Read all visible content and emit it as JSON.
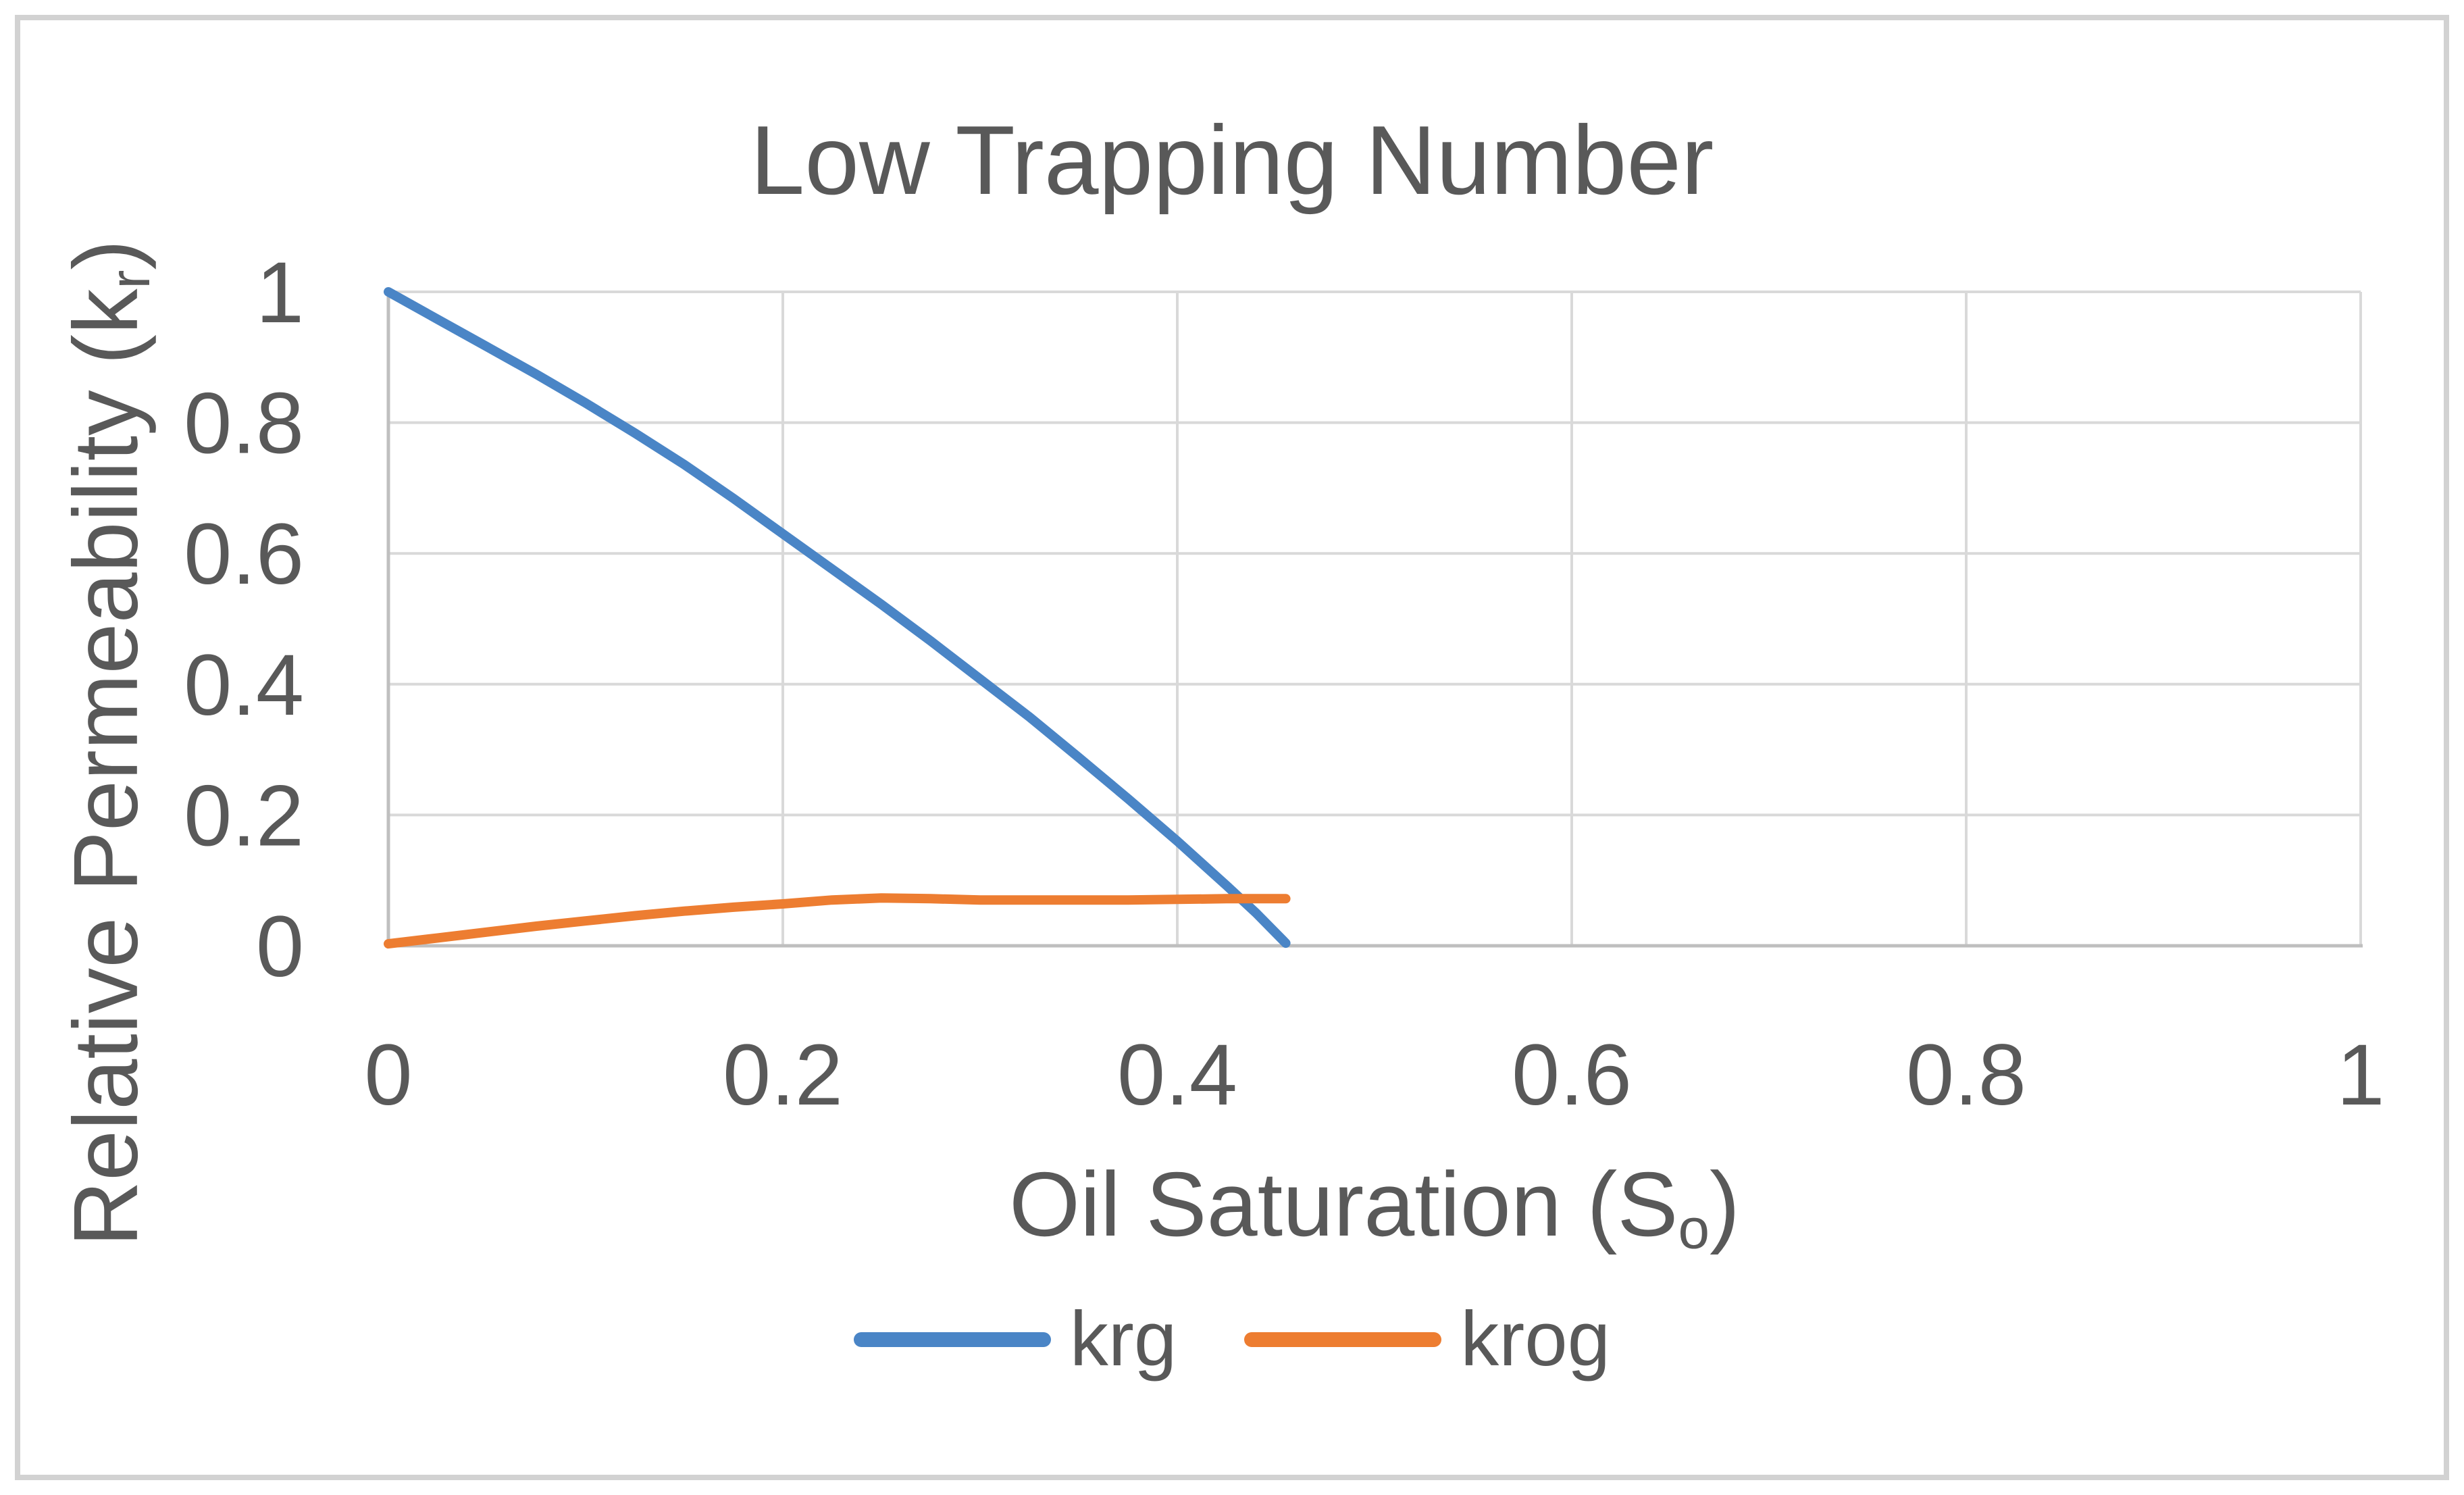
{
  "chart": {
    "title": "Low Trapping Number",
    "ylabel_pre": "Relative Permeability (k",
    "ylabel_sub": "r",
    "ylabel_post": ")",
    "xlabel_pre": "Oil Saturation (S",
    "xlabel_sub": "o",
    "xlabel_post": ")"
  },
  "chart_data": {
    "type": "line",
    "title": "Low Trapping Number",
    "xlabel": "Oil Saturation (So)",
    "ylabel": "Relative Permeability (kr)",
    "xlim": [
      0,
      1
    ],
    "ylim": [
      0,
      1
    ],
    "grid": true,
    "legend_position": "bottom",
    "x_ticks": {
      "values": [
        0,
        0.2,
        0.4,
        0.6,
        0.8,
        1
      ],
      "labels": [
        "0",
        "0.2",
        "0.4",
        "0.6",
        "0.8",
        "1"
      ]
    },
    "y_ticks": {
      "values": [
        0,
        0.2,
        0.4,
        0.6,
        0.8,
        1
      ],
      "labels": [
        "0",
        "0.2",
        "0.4",
        "0.6",
        "0.8",
        "1"
      ]
    },
    "colors": {
      "grid": "#d9d9d9",
      "axis": "#bfbfbf",
      "text": "#595959",
      "krg": "#4a85c6",
      "krog": "#ed7d31"
    },
    "series": [
      {
        "name": "krg",
        "color": "#4a85c6",
        "points": [
          [
            0,
            1.0
          ],
          [
            0.025,
            0.958
          ],
          [
            0.05,
            0.916
          ],
          [
            0.075,
            0.874
          ],
          [
            0.1,
            0.83
          ],
          [
            0.125,
            0.784
          ],
          [
            0.15,
            0.736
          ],
          [
            0.175,
            0.684
          ],
          [
            0.2,
            0.63
          ],
          [
            0.225,
            0.576
          ],
          [
            0.25,
            0.522
          ],
          [
            0.275,
            0.466
          ],
          [
            0.3,
            0.408
          ],
          [
            0.325,
            0.35
          ],
          [
            0.35,
            0.288
          ],
          [
            0.375,
            0.225
          ],
          [
            0.4,
            0.16
          ],
          [
            0.425,
            0.092
          ],
          [
            0.44,
            0.05
          ],
          [
            0.455,
            0.004
          ]
        ]
      },
      {
        "name": "krog",
        "color": "#ed7d31",
        "points": [
          [
            0,
            0.003
          ],
          [
            0.025,
            0.012
          ],
          [
            0.05,
            0.021
          ],
          [
            0.075,
            0.03
          ],
          [
            0.1,
            0.038
          ],
          [
            0.125,
            0.046
          ],
          [
            0.15,
            0.053
          ],
          [
            0.175,
            0.059
          ],
          [
            0.2,
            0.064
          ],
          [
            0.225,
            0.07
          ],
          [
            0.25,
            0.073
          ],
          [
            0.275,
            0.072
          ],
          [
            0.3,
            0.07
          ],
          [
            0.325,
            0.07
          ],
          [
            0.35,
            0.07
          ],
          [
            0.375,
            0.07
          ],
          [
            0.4,
            0.071
          ],
          [
            0.425,
            0.072
          ],
          [
            0.455,
            0.072
          ]
        ]
      }
    ]
  }
}
